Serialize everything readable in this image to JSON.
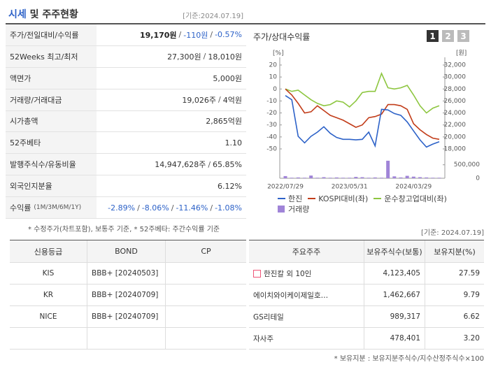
{
  "header": {
    "title_highlight": "시세",
    "title_rest": "및 주주현황",
    "date": "[기준:2024.07.19]"
  },
  "summary": {
    "separator": "/",
    "rows": [
      {
        "label": "주가/전일대비/수익률",
        "value": [
          "19,170원",
          "-110원",
          "-0.57%"
        ]
      },
      {
        "label": "52Weeks 최고/최저",
        "value": [
          "27,300원",
          "18,010원"
        ]
      },
      {
        "label": "액면가",
        "value": [
          "5,000원"
        ]
      },
      {
        "label": "거래량/거래대금",
        "value": [
          "19,026주",
          "4억원"
        ]
      },
      {
        "label": "시가총액",
        "value": [
          "2,865억원"
        ]
      },
      {
        "label": "52주베타",
        "value": [
          "1.10"
        ]
      },
      {
        "label": "발행주식수/유동비율",
        "value": [
          "14,947,628주",
          "65.85%"
        ]
      },
      {
        "label": "외국인지분율",
        "value": [
          "6.12%"
        ]
      },
      {
        "label": "수익률",
        "label_note": "(1M/3M/6M/1Y)",
        "value": [
          "-2.89%",
          "-8.06%",
          "-11.46%",
          "-1.08%"
        ]
      }
    ],
    "note": "* 수정주가(차트포함), 보통주 기준, * 52주베타: 주간수익률 기준"
  },
  "chart": {
    "type": "line",
    "title": "주가/상대수익률",
    "tabs": [
      "1",
      "2",
      "3"
    ],
    "categories": [
      "2022/07/29",
      null,
      null,
      null,
      null,
      null,
      null,
      null,
      null,
      null,
      "2023/05/31",
      null,
      null,
      null,
      null,
      null,
      null,
      null,
      null,
      null,
      "2024/03/29",
      null,
      null,
      null,
      null
    ],
    "ylabel": "[%]",
    "y2label": "[원]",
    "ylim": [
      -50,
      20
    ],
    "yticks": [
      20,
      10,
      0,
      -10,
      -20,
      -30,
      -40,
      -50
    ],
    "y2lim": [
      18000,
      32000
    ],
    "y2ticks": [
      {
        "value": 32000,
        "label": "32,000"
      },
      {
        "value": 30000,
        "label": "30,000"
      },
      {
        "value": 28000,
        "label": "28,000"
      },
      {
        "value": 26000,
        "label": "26,000"
      },
      {
        "value": 24000,
        "label": "24,000"
      },
      {
        "value": 22000,
        "label": "22,000"
      },
      {
        "value": 20000,
        "label": "20,000"
      },
      {
        "value": 18000,
        "label": "18,000"
      }
    ],
    "series": [
      {
        "name": "한진",
        "color": "#2d62c8",
        "axis": "y2",
        "values": [
          26900,
          26200,
          20100,
          19000,
          20100,
          20800,
          21700,
          20600,
          19900,
          19600,
          19600,
          19500,
          19600,
          20800,
          18500,
          24600,
          24500,
          23900,
          23600,
          22500,
          21000,
          19500,
          18300,
          18800,
          19200
        ]
      },
      {
        "name": "KOSPI대비(좌)",
        "color": "#c23d1a",
        "values": [
          0,
          -5,
          -12,
          -20,
          -19,
          -14,
          -18,
          -22,
          -24,
          -26,
          -29,
          -32,
          -30,
          -24,
          -23,
          -21,
          -13,
          -13,
          -14,
          -17,
          -29,
          -34,
          -38,
          -41,
          -42
        ]
      },
      {
        "name": "운수창고업대비(좌)",
        "color": "#8dc63f",
        "values": [
          0,
          -2,
          -1,
          -5,
          -9,
          -12,
          -14,
          -13,
          -10,
          -11,
          -15,
          -10,
          -3,
          -2,
          -2,
          13,
          1,
          0,
          1,
          3,
          -5,
          -14,
          -20,
          -16,
          -14
        ]
      }
    ],
    "volume": {
      "name": "거래량",
      "color": "#a084d8",
      "ylim": [
        0,
        700000
      ],
      "yticks": [
        {
          "value": 500000,
          "label": "500,000"
        },
        0
      ],
      "values": [
        80000,
        20000,
        30000,
        20000,
        100000,
        20000,
        40000,
        20000,
        30000,
        20000,
        20000,
        50000,
        40000,
        20000,
        30000,
        20000,
        650000,
        70000,
        30000,
        90000,
        60000,
        40000,
        30000,
        20000,
        20000
      ]
    },
    "date": "[기준: 2024.07.19]"
  },
  "credit": {
    "headers": [
      "신용등급",
      "BOND",
      "CP"
    ],
    "rows": [
      {
        "agency": "KIS",
        "bond": "BBB+ [20240503]"
      },
      {
        "agency": "KR",
        "bond": "BBB+ [20240709]"
      },
      {
        "agency": "NICE",
        "bond": "BBB+ [20240709]"
      }
    ]
  },
  "shareholders": {
    "headers": [
      "주요주주",
      "보유주식수(보통)",
      "보유지분(%)"
    ],
    "rows": [
      [
        "한진칼 외 10인",
        "4,123,405",
        "27.59"
      ],
      [
        "에이치와이케이제일호…",
        "1,462,667",
        "9.79"
      ],
      [
        "GS리테일",
        "989,317",
        "6.62"
      ],
      [
        "자사주",
        "478,401",
        "3.20"
      ]
    ],
    "note": "* 보유지분 : 보유지분주식수/지수산정주식수×100"
  }
}
